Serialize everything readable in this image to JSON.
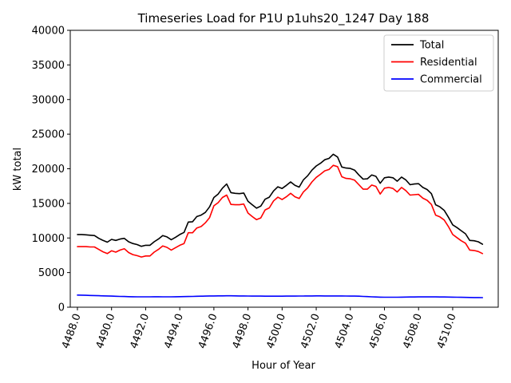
{
  "chart_data": {
    "type": "line",
    "title": "Timeseries Load for P1U p1uhs20_1247  Day 188",
    "xlabel": "Hour of Year",
    "ylabel": "kW total",
    "xlim": [
      4487.58,
      4512.67
    ],
    "ylim": [
      0,
      40000
    ],
    "x_ticks": [
      4488.0,
      4490.0,
      4492.0,
      4494.0,
      4496.0,
      4498.0,
      4500.0,
      4502.0,
      4504.0,
      4506.0,
      4508.0,
      4510.0
    ],
    "x_tick_labels": [
      "4488.0",
      "4490.0",
      "4492.0",
      "4494.0",
      "4496.0",
      "4498.0",
      "4500.0",
      "4502.0",
      "4504.0",
      "4506.0",
      "4508.0",
      "4510.0"
    ],
    "y_ticks": [
      0,
      5000,
      10000,
      15000,
      20000,
      25000,
      30000,
      35000,
      40000
    ],
    "y_tick_labels": [
      "0",
      "5000",
      "10000",
      "15000",
      "20000",
      "25000",
      "30000",
      "35000",
      "40000"
    ],
    "legend_position": "top-right",
    "x_start": 4488.0,
    "x_step": 0.25,
    "series": [
      {
        "name": "Total",
        "color": "#000000",
        "values": [
          10500,
          10500,
          10450,
          10400,
          10350,
          9950,
          9650,
          9400,
          9800,
          9650,
          9850,
          9950,
          9450,
          9200,
          9050,
          8800,
          8950,
          8950,
          9450,
          9850,
          10350,
          10150,
          9750,
          10100,
          10500,
          10800,
          12300,
          12350,
          13100,
          13300,
          13700,
          14500,
          15850,
          16350,
          17200,
          17800,
          16550,
          16450,
          16400,
          16500,
          15300,
          14800,
          14300,
          14600,
          15600,
          15900,
          16800,
          17400,
          17150,
          17600,
          18100,
          17600,
          17350,
          18400,
          19000,
          19800,
          20400,
          20800,
          21300,
          21500,
          22100,
          21700,
          20250,
          20100,
          20050,
          19800,
          19100,
          18500,
          18550,
          19100,
          18900,
          17900,
          18700,
          18800,
          18700,
          18200,
          18800,
          18400,
          17700,
          17800,
          17850,
          17300,
          17000,
          16400,
          14800,
          14500,
          14000,
          13000,
          11900,
          11500,
          11050,
          10600,
          9650,
          9600,
          9450,
          9100
        ]
      },
      {
        "name": "Residential",
        "color": "#ff0000",
        "values": [
          8750,
          8750,
          8750,
          8700,
          8700,
          8350,
          8000,
          7750,
          8150,
          7950,
          8250,
          8450,
          7900,
          7600,
          7450,
          7250,
          7400,
          7400,
          7950,
          8350,
          8850,
          8650,
          8250,
          8600,
          8950,
          9200,
          10750,
          10750,
          11450,
          11650,
          12200,
          12950,
          14650,
          15100,
          15850,
          16200,
          14850,
          14800,
          14800,
          14900,
          13600,
          13100,
          12650,
          12900,
          14050,
          14350,
          15350,
          15900,
          15550,
          15950,
          16450,
          15950,
          15700,
          16650,
          17250,
          18100,
          18750,
          19200,
          19700,
          19900,
          20500,
          20300,
          18850,
          18600,
          18550,
          18350,
          17700,
          17050,
          17050,
          17650,
          17450,
          16350,
          17200,
          17300,
          17150,
          16650,
          17300,
          16850,
          16200,
          16250,
          16300,
          15750,
          15450,
          14850,
          13300,
          13050,
          12600,
          11650,
          10500,
          10050,
          9600,
          9250,
          8250,
          8200,
          8050,
          7750
        ]
      },
      {
        "name": "Commercial",
        "color": "#0000ff",
        "values": [
          1750,
          1740,
          1720,
          1700,
          1680,
          1660,
          1640,
          1620,
          1600,
          1580,
          1560,
          1540,
          1520,
          1510,
          1500,
          1500,
          1500,
          1500,
          1510,
          1510,
          1500,
          1500,
          1500,
          1510,
          1520,
          1530,
          1550,
          1560,
          1580,
          1590,
          1600,
          1620,
          1630,
          1640,
          1640,
          1650,
          1650,
          1640,
          1630,
          1620,
          1610,
          1600,
          1600,
          1600,
          1590,
          1590,
          1590,
          1590,
          1590,
          1600,
          1600,
          1600,
          1610,
          1610,
          1620,
          1630,
          1640,
          1640,
          1630,
          1620,
          1620,
          1620,
          1620,
          1610,
          1600,
          1600,
          1590,
          1560,
          1530,
          1500,
          1470,
          1450,
          1440,
          1440,
          1440,
          1440,
          1450,
          1460,
          1470,
          1480,
          1490,
          1490,
          1490,
          1490,
          1490,
          1480,
          1470,
          1460,
          1450,
          1440,
          1430,
          1420,
          1410,
          1400,
          1390,
          1380
        ]
      }
    ]
  }
}
